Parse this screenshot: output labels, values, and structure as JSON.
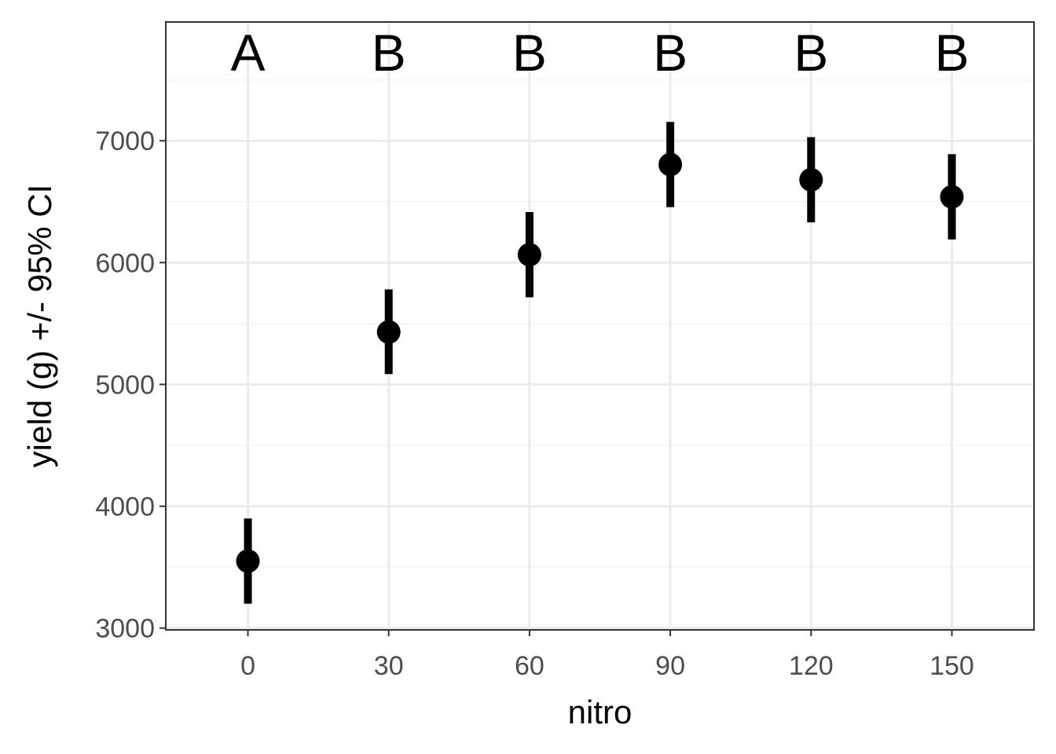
{
  "chart_data": {
    "type": "scatter",
    "title": "",
    "xlabel": "nitro",
    "ylabel": "yield (g) +/- 95% CI",
    "x": [
      0,
      30,
      60,
      90,
      120,
      150
    ],
    "x_tick_labels": [
      "0",
      "30",
      "60",
      "90",
      "120",
      "150"
    ],
    "y": [
      3550,
      5430,
      6065,
      6805,
      6680,
      6540
    ],
    "ci_lower": [
      3200,
      5085,
      5715,
      6455,
      6330,
      6190
    ],
    "ci_upper": [
      3900,
      5780,
      6415,
      7155,
      7030,
      6890
    ],
    "letters": [
      "A",
      "B",
      "B",
      "B",
      "B",
      "B"
    ],
    "xlim": [
      -17.5,
      167.5
    ],
    "ylim": [
      2985,
      7975
    ],
    "y_ticks": [
      3000,
      4000,
      5000,
      6000,
      7000
    ],
    "y_tick_labels": [
      "3000",
      "4000",
      "5000",
      "6000",
      "7000"
    ],
    "y_minor_ticks": [
      3500,
      4500,
      5500,
      6500,
      7500
    ],
    "grid": true,
    "legend": "none",
    "colors": {
      "points": "#000000",
      "grid_major": "#ebebeb",
      "grid_minor": "#f4f4f4",
      "panel_border": "#333333",
      "tick_text": "#4d4d4d"
    }
  }
}
